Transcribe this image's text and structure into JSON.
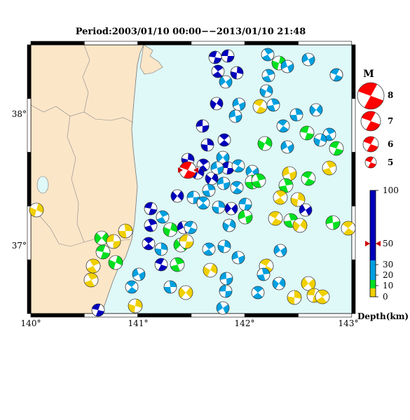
{
  "title": "Period:2003/01/10 00:00−−2013/01/10 21:48",
  "axes": {
    "lon_ticks": [
      "140°",
      "141°",
      "142°",
      "143°"
    ],
    "lat_ticks": [
      "38°",
      "37°"
    ]
  },
  "magnitude_legend": {
    "title": "M",
    "labels": [
      "8",
      "7",
      "6",
      "5"
    ]
  },
  "depth_legend": {
    "unit_label": "Depth(km)",
    "labels": [
      "100",
      "50",
      "30",
      "20",
      "10",
      "0"
    ],
    "colors": [
      "#0000bb",
      "#00a0e0",
      "#00e020",
      "#f0d000"
    ]
  },
  "colors": {
    "land": "#fce6c8",
    "sea": "#dff8f8",
    "mainshock": "#ff0000",
    "deep": "#0000bb",
    "mid": "#00a0e0",
    "shallow": "#00e020",
    "surface": "#f0d000"
  }
}
